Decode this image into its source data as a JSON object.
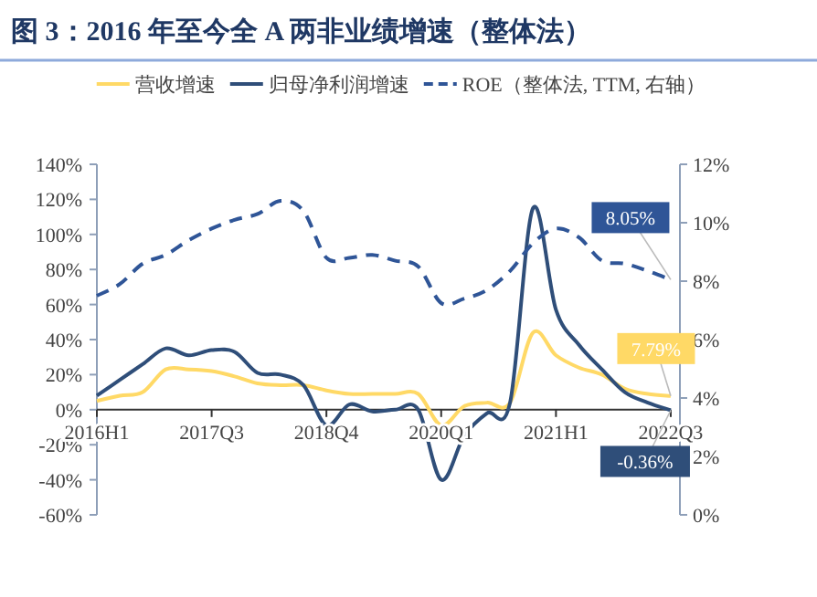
{
  "chart_data": {
    "type": "line",
    "title": "图 3：2016 年至今全 A 两非业绩增速（整体法）",
    "categories": [
      "2016H1",
      null,
      null,
      null,
      null,
      "2017Q3",
      null,
      null,
      null,
      null,
      "2018Q4",
      null,
      null,
      null,
      null,
      "2020Q1",
      null,
      null,
      null,
      null,
      "2021H1",
      null,
      null,
      null,
      null,
      "2022Q3"
    ],
    "series": [
      {
        "name": "营收增速",
        "color": "#ffd966",
        "line_style": "solid",
        "values": [
          5,
          8,
          10,
          23,
          23,
          22,
          19,
          15,
          14,
          14,
          11,
          9,
          9,
          9,
          9,
          -9,
          2,
          4,
          4,
          44,
          31,
          24,
          20,
          12,
          9,
          7.79
        ],
        "value_labels": [
          null,
          null,
          null,
          null,
          null,
          null,
          null,
          null,
          null,
          null,
          null,
          null,
          null,
          null,
          null,
          null,
          null,
          null,
          null,
          null,
          null,
          null,
          null,
          null,
          null,
          "7.79%"
        ]
      },
      {
        "name": "归母净利润增速",
        "color": "#2f4e79",
        "line_style": "solid",
        "values": [
          8,
          17,
          26,
          35,
          31,
          34,
          33,
          21,
          20,
          14,
          -9,
          3,
          -1,
          0,
          0,
          -40,
          -15,
          -2,
          4,
          115,
          57,
          37,
          23,
          10,
          4,
          -0.36
        ],
        "value_labels": [
          null,
          null,
          null,
          null,
          null,
          null,
          null,
          null,
          null,
          null,
          null,
          null,
          null,
          null,
          null,
          null,
          null,
          null,
          null,
          null,
          null,
          null,
          null,
          null,
          null,
          "-0.36%"
        ]
      },
      {
        "name": "ROE（整体法, TTM, 右轴）",
        "color": "#2f5597",
        "line_style": "dashed",
        "axis": "y2",
        "values": [
          7.5,
          7.9,
          8.6,
          8.9,
          9.4,
          9.8,
          10.1,
          10.3,
          10.75,
          10.4,
          8.8,
          8.8,
          8.9,
          8.7,
          8.5,
          7.25,
          7.4,
          7.7,
          8.35,
          9.3,
          9.8,
          9.5,
          8.7,
          8.6,
          8.35,
          8.05
        ],
        "value_labels": [
          null,
          null,
          null,
          null,
          null,
          null,
          null,
          null,
          null,
          null,
          null,
          null,
          null,
          null,
          null,
          null,
          null,
          null,
          null,
          null,
          null,
          null,
          null,
          null,
          null,
          "8.05%"
        ]
      }
    ],
    "ylim": [
      -60,
      140
    ],
    "yticks": [
      {
        "value": -60,
        "label": "-60%"
      },
      {
        "value": -40,
        "label": "-40%"
      },
      {
        "value": -20,
        "label": "-20%"
      },
      {
        "value": 0,
        "label": "0%"
      },
      {
        "value": 20,
        "label": "20%"
      },
      {
        "value": 40,
        "label": "40%"
      },
      {
        "value": 60,
        "label": "60%"
      },
      {
        "value": 80,
        "label": "80%"
      },
      {
        "value": 100,
        "label": "100%"
      },
      {
        "value": 120,
        "label": "120%"
      },
      {
        "value": 140,
        "label": "140%"
      }
    ],
    "y2lim": [
      0,
      12
    ],
    "y2ticks": [
      {
        "value": 0,
        "label": "0%"
      },
      {
        "value": 2,
        "label": "2%"
      },
      {
        "value": 4,
        "label": "4%"
      },
      {
        "value": 6,
        "label": "6%"
      },
      {
        "value": 8,
        "label": "8%"
      },
      {
        "value": 10,
        "label": "10%"
      },
      {
        "value": 12,
        "label": "12%"
      }
    ],
    "grid": false,
    "legend": "top"
  }
}
